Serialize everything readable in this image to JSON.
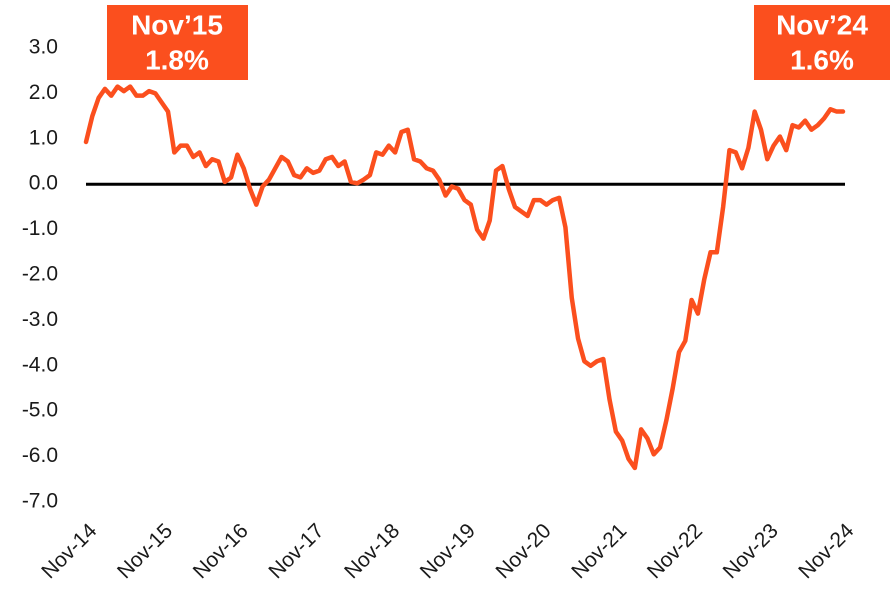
{
  "chart_data": {
    "type": "line",
    "color": "#fb4f1e",
    "zero_line_color": "#000000",
    "categories": [
      "Nov-14",
      null,
      null,
      null,
      null,
      null,
      null,
      null,
      null,
      null,
      null,
      null,
      "Nov-15",
      null,
      null,
      null,
      null,
      null,
      null,
      null,
      null,
      null,
      null,
      null,
      "Nov-16",
      null,
      null,
      null,
      null,
      null,
      null,
      null,
      null,
      null,
      null,
      null,
      "Nov-17",
      null,
      null,
      null,
      null,
      null,
      null,
      null,
      null,
      null,
      null,
      null,
      "Nov-18",
      null,
      null,
      null,
      null,
      null,
      null,
      null,
      null,
      null,
      null,
      null,
      "Nov-19",
      null,
      null,
      null,
      null,
      null,
      null,
      null,
      null,
      null,
      null,
      null,
      "Nov-20",
      null,
      null,
      null,
      null,
      null,
      null,
      null,
      null,
      null,
      null,
      null,
      "Nov-21",
      null,
      null,
      null,
      null,
      null,
      null,
      null,
      null,
      null,
      null,
      null,
      "Nov-22",
      null,
      null,
      null,
      null,
      null,
      null,
      null,
      null,
      null,
      null,
      null,
      "Nov-23",
      null,
      null,
      null,
      null,
      null,
      null,
      null,
      null,
      null,
      null,
      null,
      "Nov-24"
    ],
    "values": [
      0.93,
      1.5,
      1.9,
      2.1,
      1.95,
      2.15,
      2.05,
      2.15,
      1.95,
      1.95,
      2.05,
      2.0,
      1.8,
      1.6,
      0.7,
      0.85,
      0.85,
      0.6,
      0.7,
      0.4,
      0.55,
      0.5,
      0.05,
      0.15,
      0.65,
      0.35,
      -0.1,
      -0.45,
      -0.05,
      0.1,
      0.35,
      0.6,
      0.5,
      0.2,
      0.15,
      0.35,
      0.25,
      0.3,
      0.55,
      0.6,
      0.4,
      0.5,
      0.05,
      0.02,
      0.1,
      0.2,
      0.7,
      0.65,
      0.85,
      0.7,
      1.15,
      1.2,
      0.55,
      0.5,
      0.35,
      0.3,
      0.1,
      -0.25,
      -0.05,
      -0.1,
      -0.35,
      -0.45,
      -1.0,
      -1.2,
      -0.8,
      0.3,
      0.4,
      -0.1,
      -0.5,
      -0.6,
      -0.7,
      -0.35,
      -0.35,
      -0.45,
      -0.35,
      -0.3,
      -0.95,
      -2.5,
      -3.4,
      -3.9,
      -4.0,
      -3.9,
      -3.85,
      -4.75,
      -5.45,
      -5.65,
      -6.05,
      -6.25,
      -5.4,
      -5.6,
      -5.95,
      -5.8,
      -5.2,
      -4.5,
      -3.7,
      -3.45,
      -2.55,
      -2.85,
      -2.1,
      -1.5,
      -1.5,
      -0.5,
      0.75,
      0.7,
      0.35,
      0.8,
      1.6,
      1.2,
      0.55,
      0.85,
      1.05,
      0.75,
      1.3,
      1.25,
      1.4,
      1.2,
      1.3,
      1.45,
      1.65,
      1.6,
      1.6
    ],
    "ylim": [
      -7,
      3
    ],
    "yticks": [
      {
        "value": 3,
        "label": "3.0"
      },
      {
        "value": 2,
        "label": "2.0"
      },
      {
        "value": 1,
        "label": "1.0"
      },
      {
        "value": 0,
        "label": "0.0"
      },
      {
        "value": -1,
        "label": "-1.0"
      },
      {
        "value": -2,
        "label": "-2.0"
      },
      {
        "value": -3,
        "label": "-3.0"
      },
      {
        "value": -4,
        "label": "-4.0"
      },
      {
        "value": -5,
        "label": "-5.0"
      },
      {
        "value": -6,
        "label": "-6.0"
      },
      {
        "value": -7,
        "label": "-7.0"
      }
    ],
    "grid": false,
    "annotations": [
      {
        "label": "Nov’15",
        "text": "1.8%"
      },
      {
        "label": "Nov’24",
        "text": "1.6%"
      }
    ]
  }
}
